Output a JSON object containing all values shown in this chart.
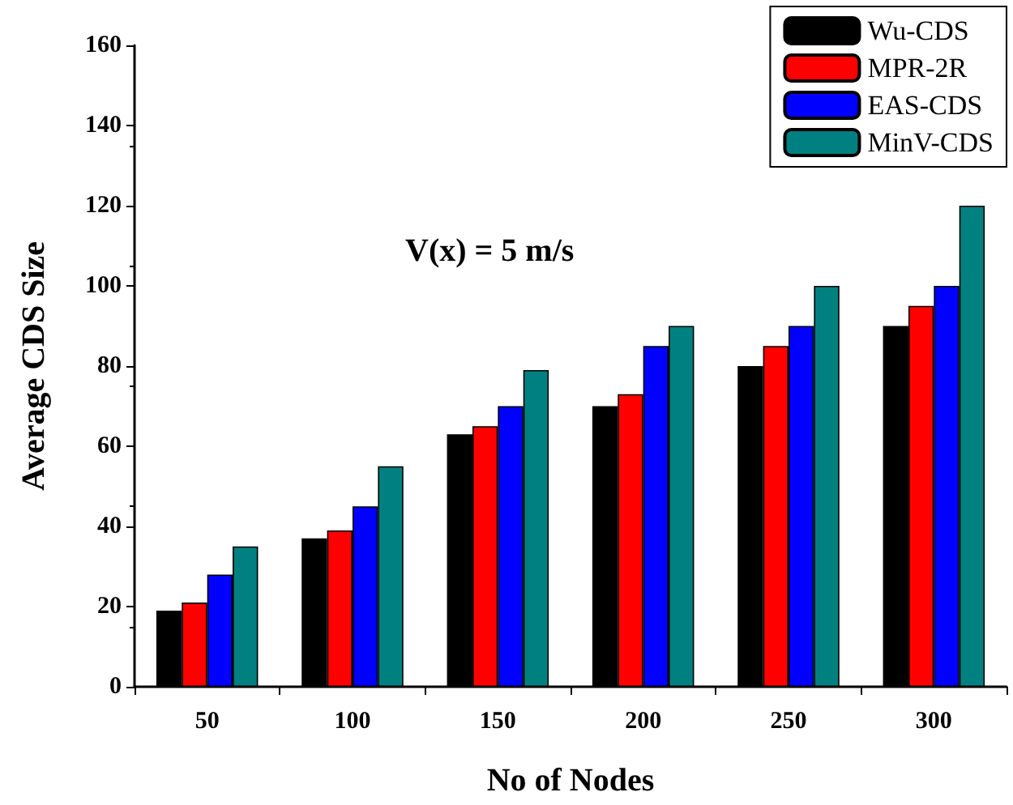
{
  "chart_data": {
    "type": "bar",
    "xlabel": "No of Nodes",
    "ylabel": "Average CDS Size",
    "annotations": [
      "V(x) = 5 m/s"
    ],
    "categories": [
      "50",
      "100",
      "150",
      "200",
      "250",
      "300"
    ],
    "series": [
      {
        "name": "Wu-CDS",
        "color": "#000000",
        "values": [
          19,
          37,
          63,
          70,
          80,
          90
        ]
      },
      {
        "name": "MPR-2R",
        "color": "#ff0000",
        "values": [
          21,
          39,
          65,
          73,
          85,
          95
        ]
      },
      {
        "name": "EAS-CDS",
        "color": "#0000ff",
        "values": [
          28,
          45,
          70,
          85,
          90,
          100
        ]
      },
      {
        "name": "MinV-CDS",
        "color": "#008080",
        "values": [
          35,
          55,
          79,
          90,
          100,
          120
        ]
      }
    ],
    "ylim": [
      0,
      160
    ],
    "yticks": [
      0,
      20,
      40,
      60,
      80,
      100,
      120,
      140,
      160
    ],
    "grid": false,
    "legend": "top right"
  }
}
